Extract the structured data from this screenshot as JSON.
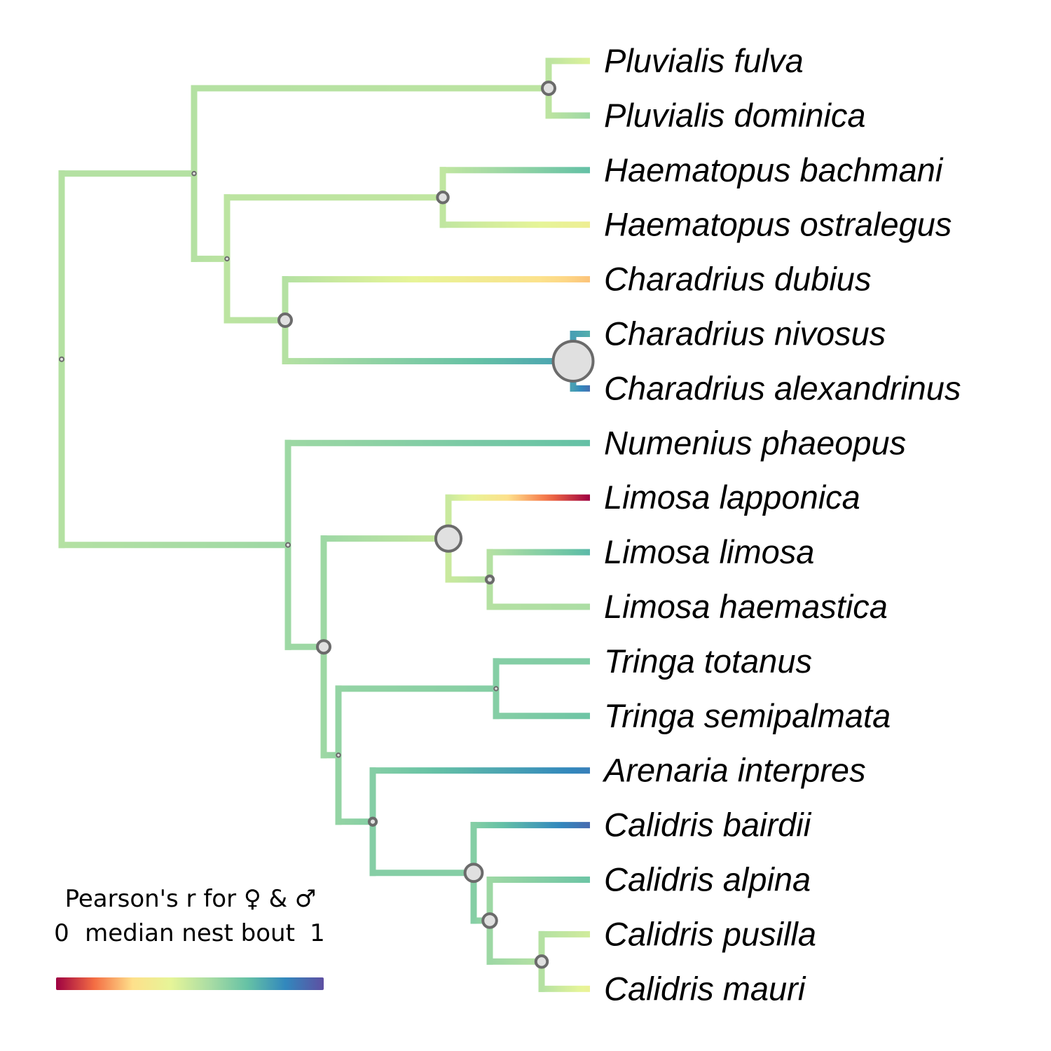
{
  "colors": {
    "background": "#ffffff",
    "node_fill": "#e0e0e0",
    "node_stroke": "#6b6b6b",
    "palette": [
      "#9e0142",
      "#f46d43",
      "#fee08b",
      "#e6f598",
      "#abdda4",
      "#66c2a5",
      "#3288bd",
      "#5e4fa2"
    ]
  },
  "legend": {
    "title": "Pearson's r for ♀ & ♂",
    "subtitle": "median nest bout",
    "min_label": "0",
    "max_label": "1"
  },
  "tree": {
    "tips": [
      {
        "name": "Pluvialis fulva",
        "value": 0.45
      },
      {
        "name": "Pluvialis dominica",
        "value": 0.6
      },
      {
        "name": "Haematopus bachmani",
        "value": 0.72
      },
      {
        "name": "Haematopus ostralegus",
        "value": 0.38
      },
      {
        "name": "Charadrius dubius",
        "value": 0.25
      },
      {
        "name": "Charadrius nivosus",
        "value": 0.76
      },
      {
        "name": "Charadrius alexandrinus",
        "value": 0.92
      },
      {
        "name": "Numenius phaeopus",
        "value": 0.72
      },
      {
        "name": "Limosa lapponica",
        "value": 0.0
      },
      {
        "name": "Limosa limosa",
        "value": 0.74
      },
      {
        "name": "Limosa haemastica",
        "value": 0.57
      },
      {
        "name": "Tringa totanus",
        "value": 0.66
      },
      {
        "name": "Tringa semipalmata",
        "value": 0.7
      },
      {
        "name": "Arenaria interpres",
        "value": 0.88
      },
      {
        "name": "Calidris bairdii",
        "value": 0.93
      },
      {
        "name": "Calidris alpina",
        "value": 0.7
      },
      {
        "name": "Calidris pusilla",
        "value": 0.48
      },
      {
        "name": "Calidris mauri",
        "value": 0.4
      }
    ],
    "internal_nodes": [
      {
        "id": "root",
        "value": 0.55,
        "uncertainty": 0.02
      },
      {
        "id": "charadriiformes-a",
        "value": 0.55,
        "uncertainty": 0.01
      },
      {
        "id": "pluvialis",
        "value": 0.53,
        "uncertainty": 0.25
      },
      {
        "id": "haem-charadrius",
        "value": 0.53,
        "uncertainty": 0.01
      },
      {
        "id": "haematopus",
        "value": 0.52,
        "uncertainty": 0.2
      },
      {
        "id": "charadrius",
        "value": 0.55,
        "uncertainty": 0.25
      },
      {
        "id": "nivosus-alexandrinus",
        "value": 0.8,
        "uncertainty": 1.0
      },
      {
        "id": "scolopaci",
        "value": 0.6,
        "uncertainty": 0.02
      },
      {
        "id": "limosa-calidris",
        "value": 0.6,
        "uncertainty": 0.25
      },
      {
        "id": "limosa",
        "value": 0.5,
        "uncertainty": 0.6
      },
      {
        "id": "limosa-limosa-haemastica",
        "value": 0.55,
        "uncertainty": 0.1
      },
      {
        "id": "tringa-calidris",
        "value": 0.62,
        "uncertainty": 0.01
      },
      {
        "id": "tringa",
        "value": 0.65,
        "uncertainty": 0.01
      },
      {
        "id": "arenaria-calidris",
        "value": 0.65,
        "uncertainty": 0.1
      },
      {
        "id": "calidris",
        "value": 0.65,
        "uncertainty": 0.38
      },
      {
        "id": "alpina-pusilla-mauri",
        "value": 0.6,
        "uncertainty": 0.28
      },
      {
        "id": "pusilla-mauri",
        "value": 0.55,
        "uncertainty": 0.22
      }
    ]
  }
}
